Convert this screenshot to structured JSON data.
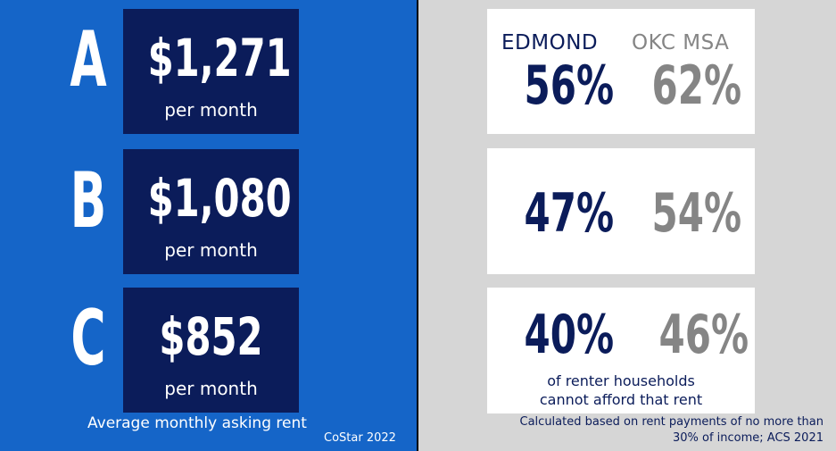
{
  "rent_tiers": [
    {
      "class": "A",
      "rent": "$1,271",
      "unit": "per month"
    },
    {
      "class": "B",
      "rent": "$1,080",
      "unit": "per month"
    },
    {
      "class": "C",
      "rent": "$852",
      "unit": "per month"
    }
  ],
  "rent_caption": "Average monthly asking rent",
  "rent_source": "CoStar 2022",
  "affordability": {
    "headers": {
      "edmond": "EDMOND",
      "okc": "OKC MSA"
    },
    "rows": [
      {
        "edmond": "56%",
        "okc": "62%"
      },
      {
        "edmond": "47%",
        "okc": "54%"
      },
      {
        "edmond": "40%",
        "okc": "46%"
      }
    ],
    "note_line1": "of renter households",
    "note_line2": "cannot afford that rent",
    "method_line1": "Calculated based on rent payments of no more than",
    "method_line2": "30% of income; ACS 2021"
  },
  "colors": {
    "left_bg": "#1565c8",
    "navy": "#0b1c5a",
    "grey": "#858585",
    "right_bg": "#d6d6d6"
  }
}
